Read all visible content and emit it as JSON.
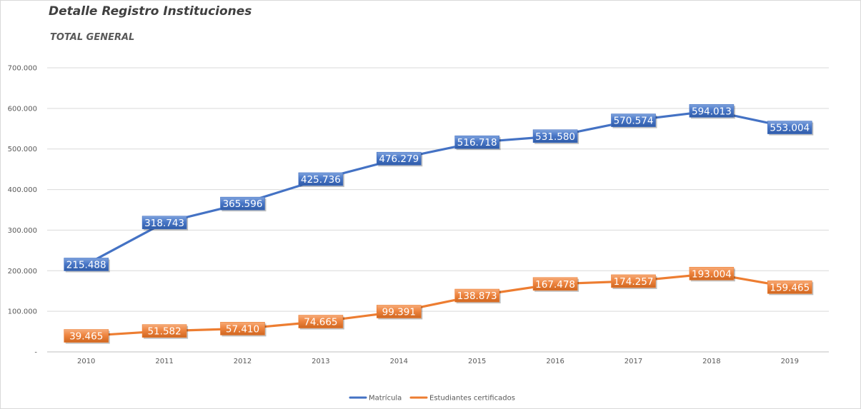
{
  "header": {
    "title": "Detalle Registro Instituciones",
    "subtitle": "TOTAL GENERAL"
  },
  "chart_data": {
    "type": "line",
    "title": "Detalle Registro Instituciones",
    "subtitle": "TOTAL GENERAL",
    "xlabel": "",
    "ylabel": "",
    "ylim": [
      0,
      700000
    ],
    "yticks": [
      0,
      100000,
      200000,
      300000,
      400000,
      500000,
      600000,
      700000
    ],
    "ytick_labels": [
      "-",
      "100.000",
      "200.000",
      "300.000",
      "400.000",
      "500.000",
      "600.000",
      "700.000"
    ],
    "categories": [
      "2010",
      "2011",
      "2012",
      "2013",
      "2014",
      "2015",
      "2016",
      "2017",
      "2018",
      "2019"
    ],
    "grid": "horizontal",
    "legend_position": "bottom",
    "series": [
      {
        "name": "Matrícula",
        "color": "#4472c4",
        "values": [
          215488,
          318743,
          365596,
          425736,
          476279,
          516718,
          531580,
          570574,
          594013,
          553004
        ],
        "labels": [
          "215.488",
          "318.743",
          "365.596",
          "425.736",
          "476.279",
          "516.718",
          "531.580",
          "570.574",
          "594.013",
          "553.004"
        ]
      },
      {
        "name": "Estudiantes certificados",
        "color": "#ed7d31",
        "values": [
          39465,
          51582,
          57410,
          74665,
          99391,
          138873,
          167478,
          174257,
          193004,
          159465
        ],
        "labels": [
          "39.465",
          "51.582",
          "57.410",
          "74.665",
          "99.391",
          "138.873",
          "167.478",
          "174.257",
          "193.004",
          "159.465"
        ]
      }
    ]
  }
}
